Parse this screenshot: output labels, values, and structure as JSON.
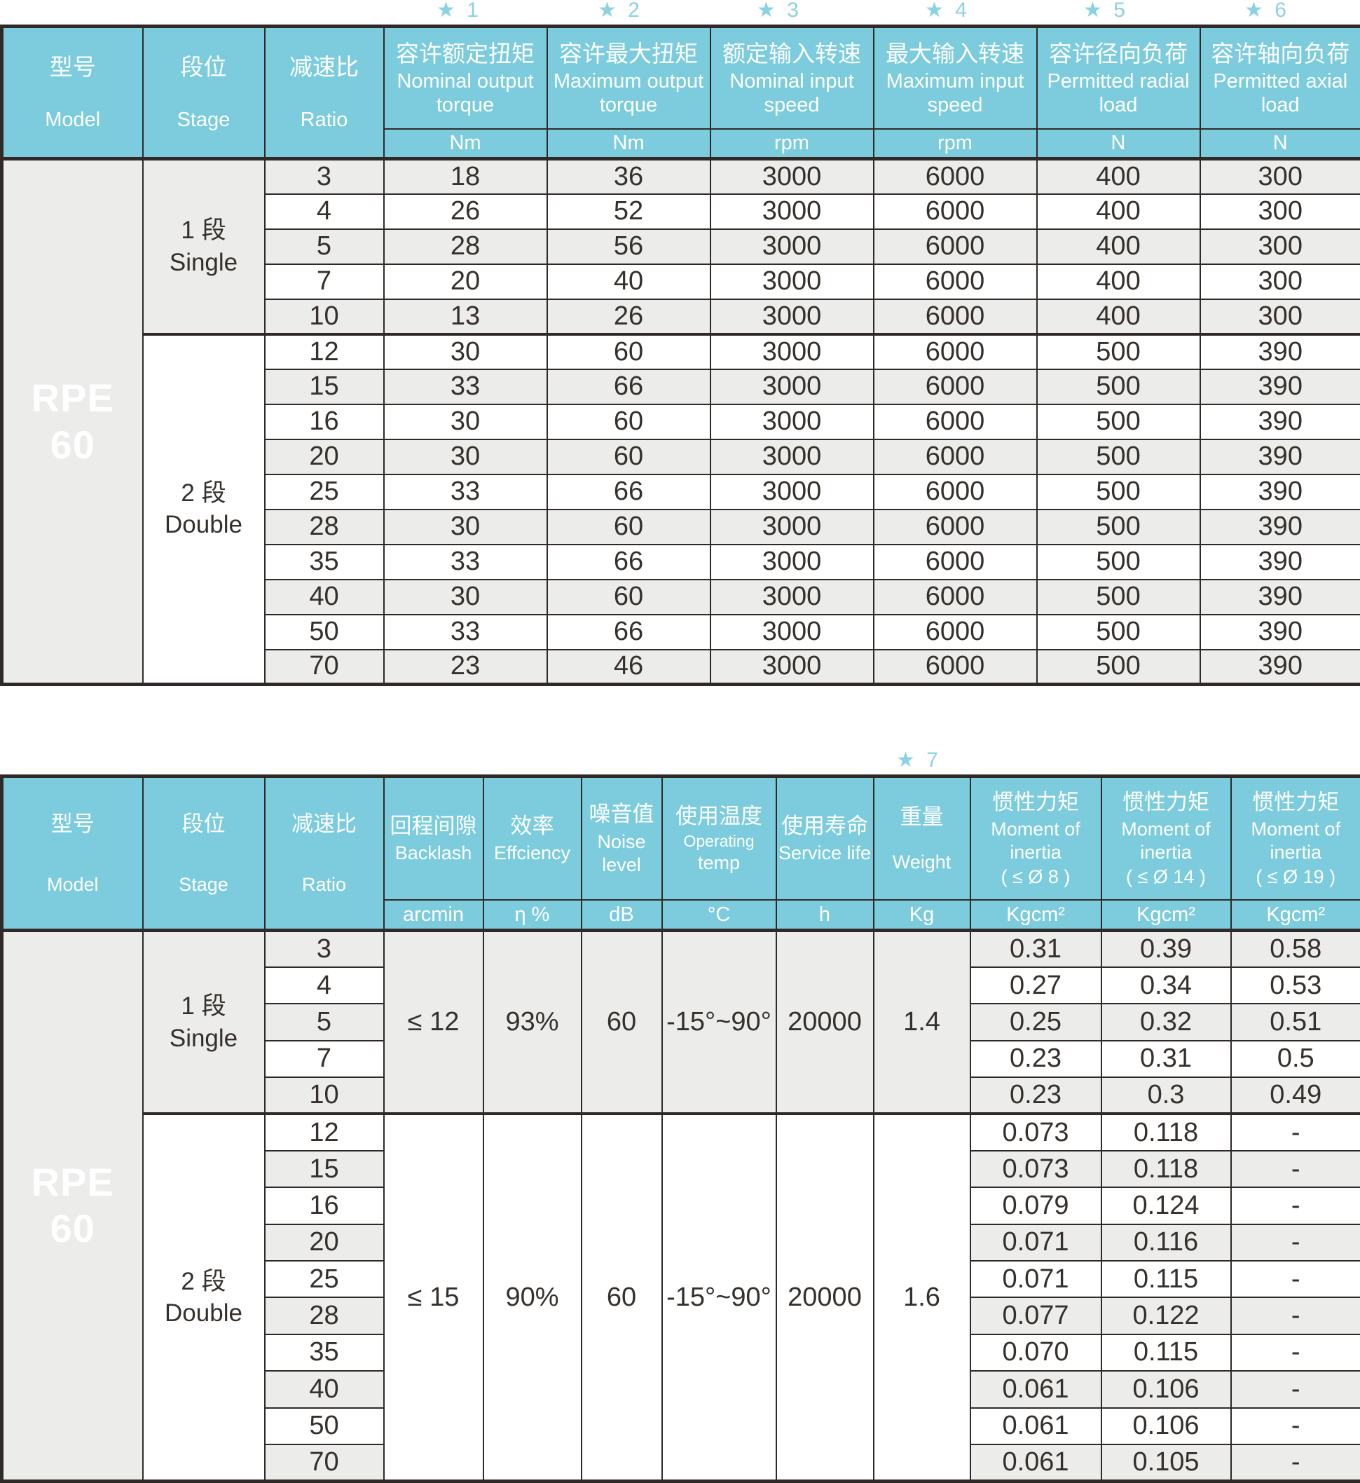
{
  "colors": {
    "header_bg": "#7cccdd",
    "star_blue": "#8bd2e4",
    "row_alt_gray": "#ececea",
    "row_white": "#ffffff",
    "border_dark": "#2f2a27",
    "text_dark": "#35302c",
    "header_text": "#ffffff"
  },
  "table1": {
    "stars": [
      "★ 1",
      "★ 2",
      "★ 3",
      "★ 4",
      "★ 5",
      "★ 6"
    ],
    "model": {
      "zh": "型号",
      "en": "Model",
      "line1": "RPE",
      "line2": "60"
    },
    "stage_header": {
      "zh": "段位",
      "en": "Stage"
    },
    "ratio_header": {
      "zh": "减速比",
      "en": "Ratio"
    },
    "columns": [
      {
        "zh": "容许额定扭矩",
        "en": "Nominal output torque",
        "unit": "Nm"
      },
      {
        "zh": "容许最大扭矩",
        "en": "Maximum output torque",
        "unit": "Nm"
      },
      {
        "zh": "额定输入转速",
        "en": "Nominal input speed",
        "unit": "rpm"
      },
      {
        "zh": "最大输入转速",
        "en": "Maximum input speed",
        "unit": "rpm"
      },
      {
        "zh": "容许径向负荷",
        "en": "Permitted radial load",
        "unit": "N"
      },
      {
        "zh": "容许轴向负荷",
        "en": "Permitted axial load",
        "unit": "N"
      }
    ],
    "groups": [
      {
        "stage_zh": "1 段",
        "stage_en": "Single",
        "rows": [
          [
            "3",
            "18",
            "36",
            "3000",
            "6000",
            "400",
            "300"
          ],
          [
            "4",
            "26",
            "52",
            "3000",
            "6000",
            "400",
            "300"
          ],
          [
            "5",
            "28",
            "56",
            "3000",
            "6000",
            "400",
            "300"
          ],
          [
            "7",
            "20",
            "40",
            "3000",
            "6000",
            "400",
            "300"
          ],
          [
            "10",
            "13",
            "26",
            "3000",
            "6000",
            "400",
            "300"
          ]
        ]
      },
      {
        "stage_zh": "2 段",
        "stage_en": "Double",
        "rows": [
          [
            "12",
            "30",
            "60",
            "3000",
            "6000",
            "500",
            "390"
          ],
          [
            "15",
            "33",
            "66",
            "3000",
            "6000",
            "500",
            "390"
          ],
          [
            "16",
            "30",
            "60",
            "3000",
            "6000",
            "500",
            "390"
          ],
          [
            "20",
            "30",
            "60",
            "3000",
            "6000",
            "500",
            "390"
          ],
          [
            "25",
            "33",
            "66",
            "3000",
            "6000",
            "500",
            "390"
          ],
          [
            "28",
            "30",
            "60",
            "3000",
            "6000",
            "500",
            "390"
          ],
          [
            "35",
            "33",
            "66",
            "3000",
            "6000",
            "500",
            "390"
          ],
          [
            "40",
            "30",
            "60",
            "3000",
            "6000",
            "500",
            "390"
          ],
          [
            "50",
            "33",
            "66",
            "3000",
            "6000",
            "500",
            "390"
          ],
          [
            "70",
            "23",
            "46",
            "3000",
            "6000",
            "500",
            "390"
          ]
        ]
      }
    ]
  },
  "table2": {
    "star7": "★ 7",
    "model": {
      "zh": "型号",
      "en": "Model",
      "line1": "RPE",
      "line2": "60"
    },
    "stage_header": {
      "zh": "段位",
      "en": "Stage"
    },
    "ratio_header": {
      "zh": "减速比",
      "en": "Ratio"
    },
    "columns": [
      {
        "zh": "回程间隙",
        "en": "Backlash",
        "unit": "arcmin"
      },
      {
        "zh": "效率",
        "en": "Effciency",
        "unit": "η %"
      },
      {
        "zh": "噪音值",
        "en": "Noise level",
        "unit": "dB"
      },
      {
        "zh": "使用温度",
        "en_small": "Operating",
        "en": "temp",
        "unit": "°C"
      },
      {
        "zh": "使用寿命",
        "en": "Service life",
        "unit": "h"
      },
      {
        "zh": "重量",
        "en": "Weight",
        "unit": "Kg"
      },
      {
        "zh": "惯性力矩",
        "en": "Moment of inertia",
        "range": "( ≤ Ø 8 )",
        "unit": "Kgcm²"
      },
      {
        "zh": "惯性力矩",
        "en": "Moment of inertia",
        "range": "( ≤ Ø 14 )",
        "unit": "Kgcm²"
      },
      {
        "zh": "惯性力矩",
        "en": "Moment of inertia",
        "range": "( ≤ Ø 19 )",
        "unit": "Kgcm²"
      }
    ],
    "groups": [
      {
        "stage_zh": "1 段",
        "stage_en": "Single",
        "merged": [
          "≤ 12",
          "93%",
          "60",
          "-15°~90°",
          "20000",
          "1.4"
        ],
        "rows": [
          [
            "3",
            "0.31",
            "0.39",
            "0.58"
          ],
          [
            "4",
            "0.27",
            "0.34",
            "0.53"
          ],
          [
            "5",
            "0.25",
            "0.32",
            "0.51"
          ],
          [
            "7",
            "0.23",
            "0.31",
            "0.5"
          ],
          [
            "10",
            "0.23",
            "0.3",
            "0.49"
          ]
        ]
      },
      {
        "stage_zh": "2 段",
        "stage_en": "Double",
        "merged": [
          "≤ 15",
          "90%",
          "60",
          "-15°~90°",
          "20000",
          "1.6"
        ],
        "rows": [
          [
            "12",
            "0.073",
            "0.118",
            "-"
          ],
          [
            "15",
            "0.073",
            "0.118",
            "-"
          ],
          [
            "16",
            "0.079",
            "0.124",
            "-"
          ],
          [
            "20",
            "0.071",
            "0.116",
            "-"
          ],
          [
            "25",
            "0.071",
            "0.115",
            "-"
          ],
          [
            "28",
            "0.077",
            "0.122",
            "-"
          ],
          [
            "35",
            "0.070",
            "0.115",
            "-"
          ],
          [
            "40",
            "0.061",
            "0.106",
            "-"
          ],
          [
            "50",
            "0.061",
            "0.106",
            "-"
          ],
          [
            "70",
            "0.061",
            "0.105",
            "-"
          ]
        ]
      }
    ]
  }
}
